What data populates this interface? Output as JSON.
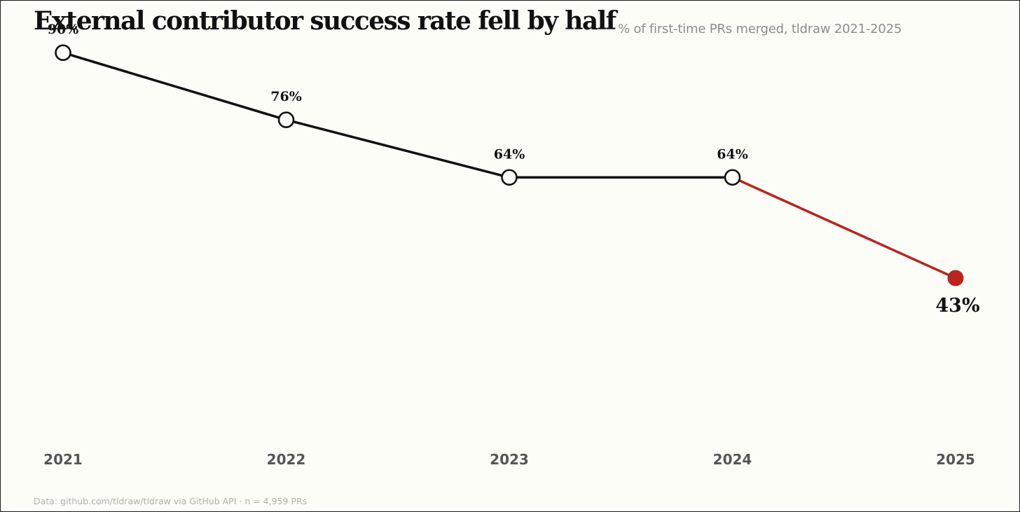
{
  "header": {
    "title": "External contributor success rate fell by half",
    "subtitle": "% of first-time PRs merged, tldraw 2021-2025"
  },
  "footer": {
    "source": "Data: github.com/tldraw/tldraw via GitHub API · n = 4,959 PRs"
  },
  "colors": {
    "line": "#111111",
    "highlight": "#b8251e",
    "background": "#fdfdf8"
  },
  "chart_data": {
    "type": "line",
    "title": "External contributor success rate fell by half",
    "subtitle": "% of first-time PRs merged, tldraw 2021-2025",
    "xlabel": "",
    "ylabel": "",
    "categories": [
      "2021",
      "2022",
      "2023",
      "2024",
      "2025"
    ],
    "values": [
      90,
      76,
      64,
      64,
      43
    ],
    "data_labels": [
      "90%",
      "76%",
      "64%",
      "64%",
      "43%"
    ],
    "highlight_index": 4,
    "ylim": [
      10,
      95
    ],
    "grid": false,
    "legend": "none"
  }
}
